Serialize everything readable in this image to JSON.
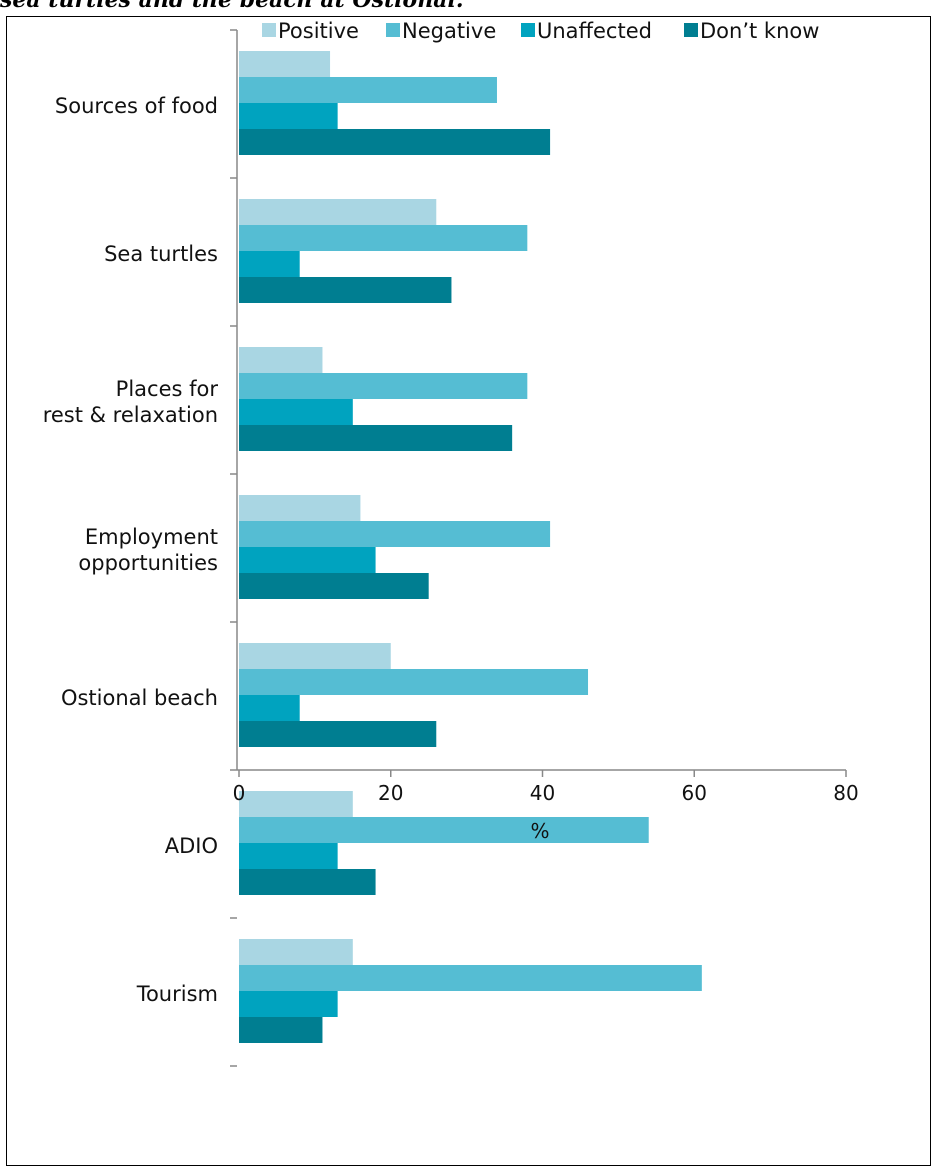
{
  "caption": "sea turtles and the beach at Ostional.",
  "chart_data": {
    "type": "bar",
    "orientation": "horizontal",
    "xlabel": "%",
    "xlim": [
      0,
      80
    ],
    "xticks": [
      0,
      20,
      40,
      60,
      80
    ],
    "legend_position": "top",
    "grid": false,
    "categories": [
      [
        "Sources of food"
      ],
      [
        "Sea turtles"
      ],
      [
        "Places for",
        "rest & relaxation"
      ],
      [
        "Employment",
        "opportunities"
      ],
      [
        "Ostional beach"
      ],
      [
        "ADIO"
      ],
      [
        "Tourism"
      ]
    ],
    "series": [
      {
        "name": "Positive",
        "color": "#a9d6e3",
        "values": [
          12,
          26,
          11,
          16,
          20,
          15,
          15
        ]
      },
      {
        "name": "Negative",
        "color": "#55bdd3",
        "values": [
          34,
          38,
          38,
          41,
          46,
          54,
          61
        ]
      },
      {
        "name": "Unaffected",
        "color": "#00a3bf",
        "values": [
          13,
          8,
          15,
          18,
          8,
          13,
          13
        ]
      },
      {
        "name": "Don’t know",
        "color": "#007e91",
        "values": [
          41,
          28,
          36,
          25,
          26,
          18,
          11
        ]
      }
    ]
  }
}
